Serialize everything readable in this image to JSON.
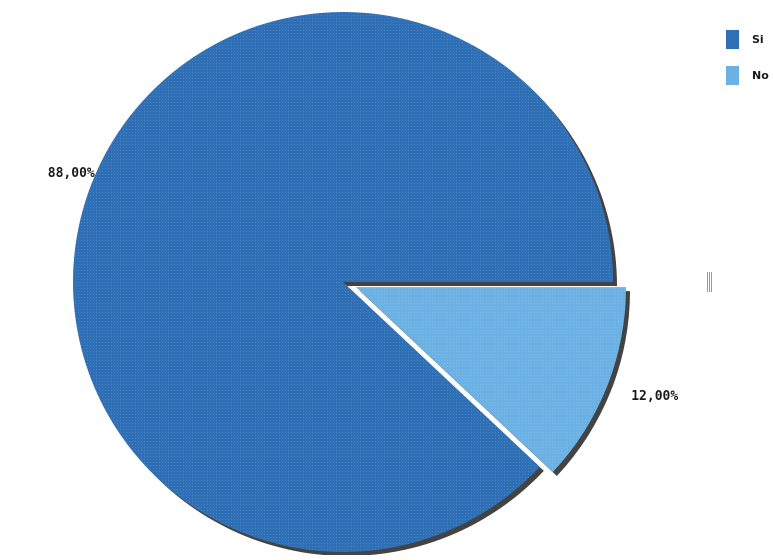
{
  "chart_data": {
    "type": "pie",
    "title": "",
    "categories": [
      "Si",
      "No"
    ],
    "values": [
      88,
      12
    ],
    "value_labels": [
      "88,00%",
      "12,00%"
    ],
    "colors": [
      "#2f6fb5",
      "#6cb1e3"
    ],
    "exploded": [
      "No"
    ],
    "legend_position": "top-right"
  },
  "legend": {
    "items": [
      {
        "label": "Si",
        "color": "#2f6fb5"
      },
      {
        "label": "No",
        "color": "#6cb1e3"
      }
    ]
  }
}
